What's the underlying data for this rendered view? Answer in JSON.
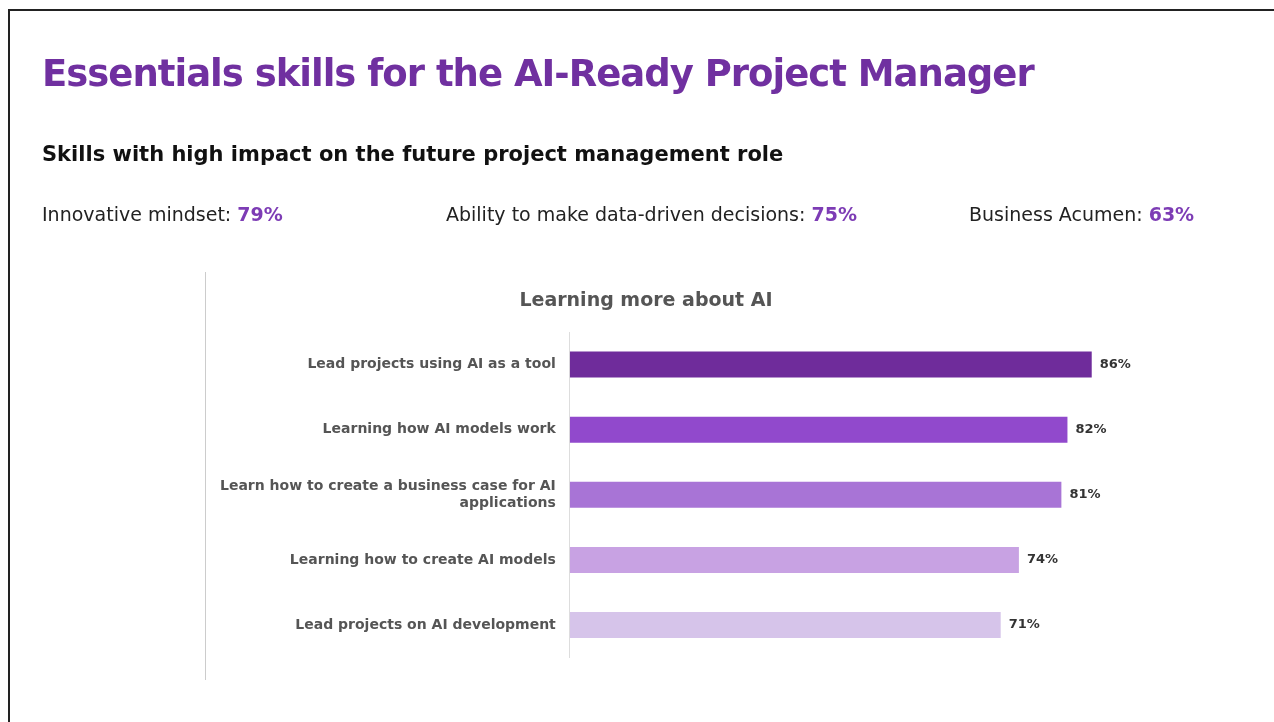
{
  "chart_data": {
    "type": "bar",
    "orientation": "horizontal",
    "title": "Essentials skills for the AI-Ready Project Manager",
    "subtitle": "Skills with high impact on the future project management role",
    "annotations": [
      "Innovative mindset: 79%",
      "Ability to make data-driven decisions: 75%",
      "Business Acumen: 63%",
      "Learning more about AI"
    ],
    "categories": [
      "Lead projects using AI as a tool",
      "Learning how AI models work",
      "Learn how to create a business case for AI applications",
      "Learning how to create AI models",
      "Lead projects on AI development"
    ],
    "values": [
      86,
      82,
      81,
      74,
      71
    ],
    "colors": [
      "#6f2c9b",
      "#9149cc",
      "#a874d6",
      "#c8a2e3",
      "#d6c4ea"
    ],
    "value_labels": [
      "86%",
      "82%",
      "81%",
      "74%",
      "71%"
    ],
    "legend": false
  }
}
